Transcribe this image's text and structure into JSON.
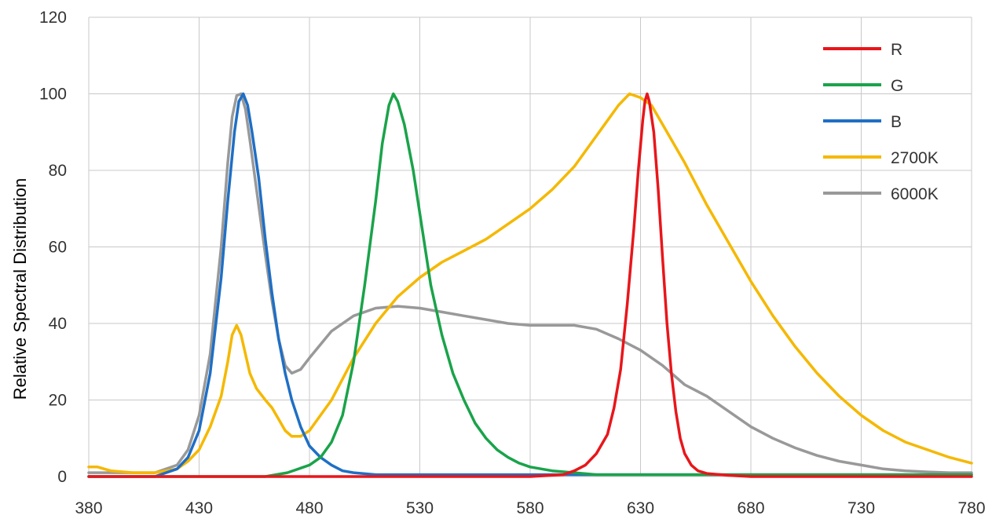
{
  "chart_data": {
    "type": "line",
    "title": "",
    "xlabel": "",
    "ylabel": "Relative Spectral Distribution",
    "xlim": [
      380,
      780
    ],
    "ylim": [
      0,
      120
    ],
    "x_ticks": [
      380,
      430,
      480,
      530,
      580,
      630,
      680,
      730,
      780
    ],
    "y_ticks": [
      0,
      20,
      40,
      60,
      80,
      100,
      120
    ],
    "grid": true,
    "legend_position": "top-right",
    "series": [
      {
        "name": "6000K",
        "color": "#999999",
        "points": [
          [
            380,
            1
          ],
          [
            400,
            1
          ],
          [
            410,
            1
          ],
          [
            420,
            3
          ],
          [
            425,
            7
          ],
          [
            430,
            16
          ],
          [
            435,
            32
          ],
          [
            440,
            60
          ],
          [
            443,
            82
          ],
          [
            445,
            94
          ],
          [
            447,
            99.5
          ],
          [
            449,
            100
          ],
          [
            451,
            96
          ],
          [
            453,
            88
          ],
          [
            456,
            75
          ],
          [
            460,
            58
          ],
          [
            463,
            46
          ],
          [
            466,
            36
          ],
          [
            469,
            29
          ],
          [
            472,
            27
          ],
          [
            476,
            28
          ],
          [
            480,
            31
          ],
          [
            490,
            38
          ],
          [
            500,
            42
          ],
          [
            510,
            44
          ],
          [
            520,
            44.5
          ],
          [
            530,
            44
          ],
          [
            540,
            43
          ],
          [
            550,
            42
          ],
          [
            560,
            41
          ],
          [
            570,
            40
          ],
          [
            580,
            39.5
          ],
          [
            590,
            39.5
          ],
          [
            600,
            39.5
          ],
          [
            610,
            38.5
          ],
          [
            620,
            36
          ],
          [
            630,
            33
          ],
          [
            640,
            29
          ],
          [
            650,
            24
          ],
          [
            660,
            21
          ],
          [
            670,
            17
          ],
          [
            680,
            13
          ],
          [
            690,
            10
          ],
          [
            700,
            7.5
          ],
          [
            710,
            5.5
          ],
          [
            720,
            4
          ],
          [
            730,
            3
          ],
          [
            740,
            2
          ],
          [
            750,
            1.5
          ],
          [
            760,
            1.2
          ],
          [
            770,
            1
          ],
          [
            780,
            1
          ]
        ]
      },
      {
        "name": "2700K",
        "color": "#f5b800",
        "points": [
          [
            380,
            2.5
          ],
          [
            384,
            2.5
          ],
          [
            387,
            2
          ],
          [
            390,
            1.5
          ],
          [
            400,
            1
          ],
          [
            410,
            1
          ],
          [
            420,
            2
          ],
          [
            425,
            4
          ],
          [
            430,
            7
          ],
          [
            435,
            13
          ],
          [
            440,
            21
          ],
          [
            443,
            30
          ],
          [
            445,
            37
          ],
          [
            447,
            39.5
          ],
          [
            449,
            37
          ],
          [
            451,
            32
          ],
          [
            453,
            27
          ],
          [
            456,
            23
          ],
          [
            460,
            20
          ],
          [
            463,
            18
          ],
          [
            466,
            15
          ],
          [
            469,
            12
          ],
          [
            472,
            10.5
          ],
          [
            476,
            10.5
          ],
          [
            480,
            12
          ],
          [
            490,
            20
          ],
          [
            500,
            31
          ],
          [
            510,
            40
          ],
          [
            520,
            47
          ],
          [
            530,
            52
          ],
          [
            540,
            56
          ],
          [
            550,
            59
          ],
          [
            560,
            62
          ],
          [
            570,
            66
          ],
          [
            580,
            70
          ],
          [
            590,
            75
          ],
          [
            600,
            81
          ],
          [
            610,
            89
          ],
          [
            620,
            97
          ],
          [
            625,
            100
          ],
          [
            630,
            99
          ],
          [
            635,
            97
          ],
          [
            640,
            92
          ],
          [
            650,
            82
          ],
          [
            660,
            71
          ],
          [
            670,
            61
          ],
          [
            680,
            51
          ],
          [
            690,
            42
          ],
          [
            700,
            34
          ],
          [
            710,
            27
          ],
          [
            720,
            21
          ],
          [
            730,
            16
          ],
          [
            740,
            12
          ],
          [
            750,
            9
          ],
          [
            760,
            7
          ],
          [
            770,
            5
          ],
          [
            780,
            3.5
          ]
        ]
      },
      {
        "name": "B",
        "color": "#1f6fc5",
        "points": [
          [
            380,
            0
          ],
          [
            400,
            0
          ],
          [
            410,
            0
          ],
          [
            420,
            2
          ],
          [
            425,
            5
          ],
          [
            430,
            12
          ],
          [
            435,
            27
          ],
          [
            440,
            52
          ],
          [
            443,
            72
          ],
          [
            446,
            90
          ],
          [
            448,
            98
          ],
          [
            450,
            100
          ],
          [
            452,
            97
          ],
          [
            454,
            90
          ],
          [
            457,
            78
          ],
          [
            460,
            62
          ],
          [
            463,
            48
          ],
          [
            466,
            36
          ],
          [
            469,
            27
          ],
          [
            472,
            20
          ],
          [
            476,
            13
          ],
          [
            480,
            8
          ],
          [
            485,
            5
          ],
          [
            490,
            3
          ],
          [
            495,
            1.5
          ],
          [
            500,
            1
          ],
          [
            510,
            0.5
          ],
          [
            530,
            0.5
          ],
          [
            580,
            0.5
          ],
          [
            630,
            0.5
          ],
          [
            680,
            0.5
          ],
          [
            730,
            0.5
          ],
          [
            780,
            0.5
          ]
        ]
      },
      {
        "name": "G",
        "color": "#1aa34a",
        "points": [
          [
            380,
            0
          ],
          [
            440,
            0
          ],
          [
            460,
            0
          ],
          [
            470,
            1
          ],
          [
            480,
            3
          ],
          [
            485,
            5
          ],
          [
            490,
            9
          ],
          [
            495,
            16
          ],
          [
            500,
            30
          ],
          [
            505,
            50
          ],
          [
            510,
            72
          ],
          [
            513,
            87
          ],
          [
            516,
            97
          ],
          [
            518,
            100
          ],
          [
            520,
            98
          ],
          [
            523,
            92
          ],
          [
            527,
            80
          ],
          [
            531,
            65
          ],
          [
            535,
            50
          ],
          [
            540,
            37
          ],
          [
            545,
            27
          ],
          [
            550,
            20
          ],
          [
            555,
            14
          ],
          [
            560,
            10
          ],
          [
            565,
            7
          ],
          [
            570,
            5
          ],
          [
            575,
            3.5
          ],
          [
            580,
            2.5
          ],
          [
            590,
            1.5
          ],
          [
            600,
            1
          ],
          [
            610,
            0.5
          ],
          [
            630,
            0.5
          ],
          [
            780,
            0.5
          ]
        ]
      },
      {
        "name": "R",
        "color": "#e8161b",
        "points": [
          [
            380,
            0
          ],
          [
            580,
            0
          ],
          [
            595,
            0.5
          ],
          [
            600,
            1.5
          ],
          [
            605,
            3
          ],
          [
            610,
            6
          ],
          [
            615,
            11
          ],
          [
            618,
            18
          ],
          [
            621,
            28
          ],
          [
            624,
            45
          ],
          [
            627,
            65
          ],
          [
            629,
            80
          ],
          [
            631,
            93
          ],
          [
            632,
            98
          ],
          [
            633,
            100
          ],
          [
            634,
            98
          ],
          [
            636,
            90
          ],
          [
            638,
            75
          ],
          [
            640,
            57
          ],
          [
            642,
            40
          ],
          [
            644,
            27
          ],
          [
            646,
            17
          ],
          [
            648,
            10
          ],
          [
            650,
            6
          ],
          [
            653,
            3
          ],
          [
            656,
            1.5
          ],
          [
            660,
            0.8
          ],
          [
            670,
            0.3
          ],
          [
            680,
            0
          ],
          [
            780,
            0
          ]
        ]
      }
    ]
  }
}
